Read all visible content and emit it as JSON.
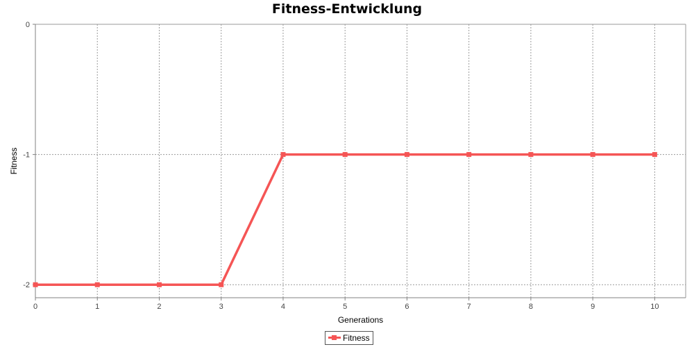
{
  "chart_data": {
    "type": "line",
    "title": "Fitness-Entwicklung",
    "xlabel": "Generations",
    "ylabel": "Fitness",
    "xlim": [
      0,
      10.5
    ],
    "ylim": [
      -2.1,
      0
    ],
    "x_ticks": [
      0,
      1,
      2,
      3,
      4,
      5,
      6,
      7,
      8,
      9,
      10
    ],
    "y_ticks": [
      0,
      -1,
      -2
    ],
    "grid": true,
    "legend_position": "bottom-center",
    "series": [
      {
        "name": "Fitness",
        "color": "#f55555",
        "x": [
          0,
          1,
          2,
          3,
          4,
          5,
          6,
          7,
          8,
          9,
          10
        ],
        "y": [
          -2,
          -2,
          -2,
          -2,
          -1,
          -1,
          -1,
          -1,
          -1,
          -1,
          -1
        ]
      }
    ]
  }
}
